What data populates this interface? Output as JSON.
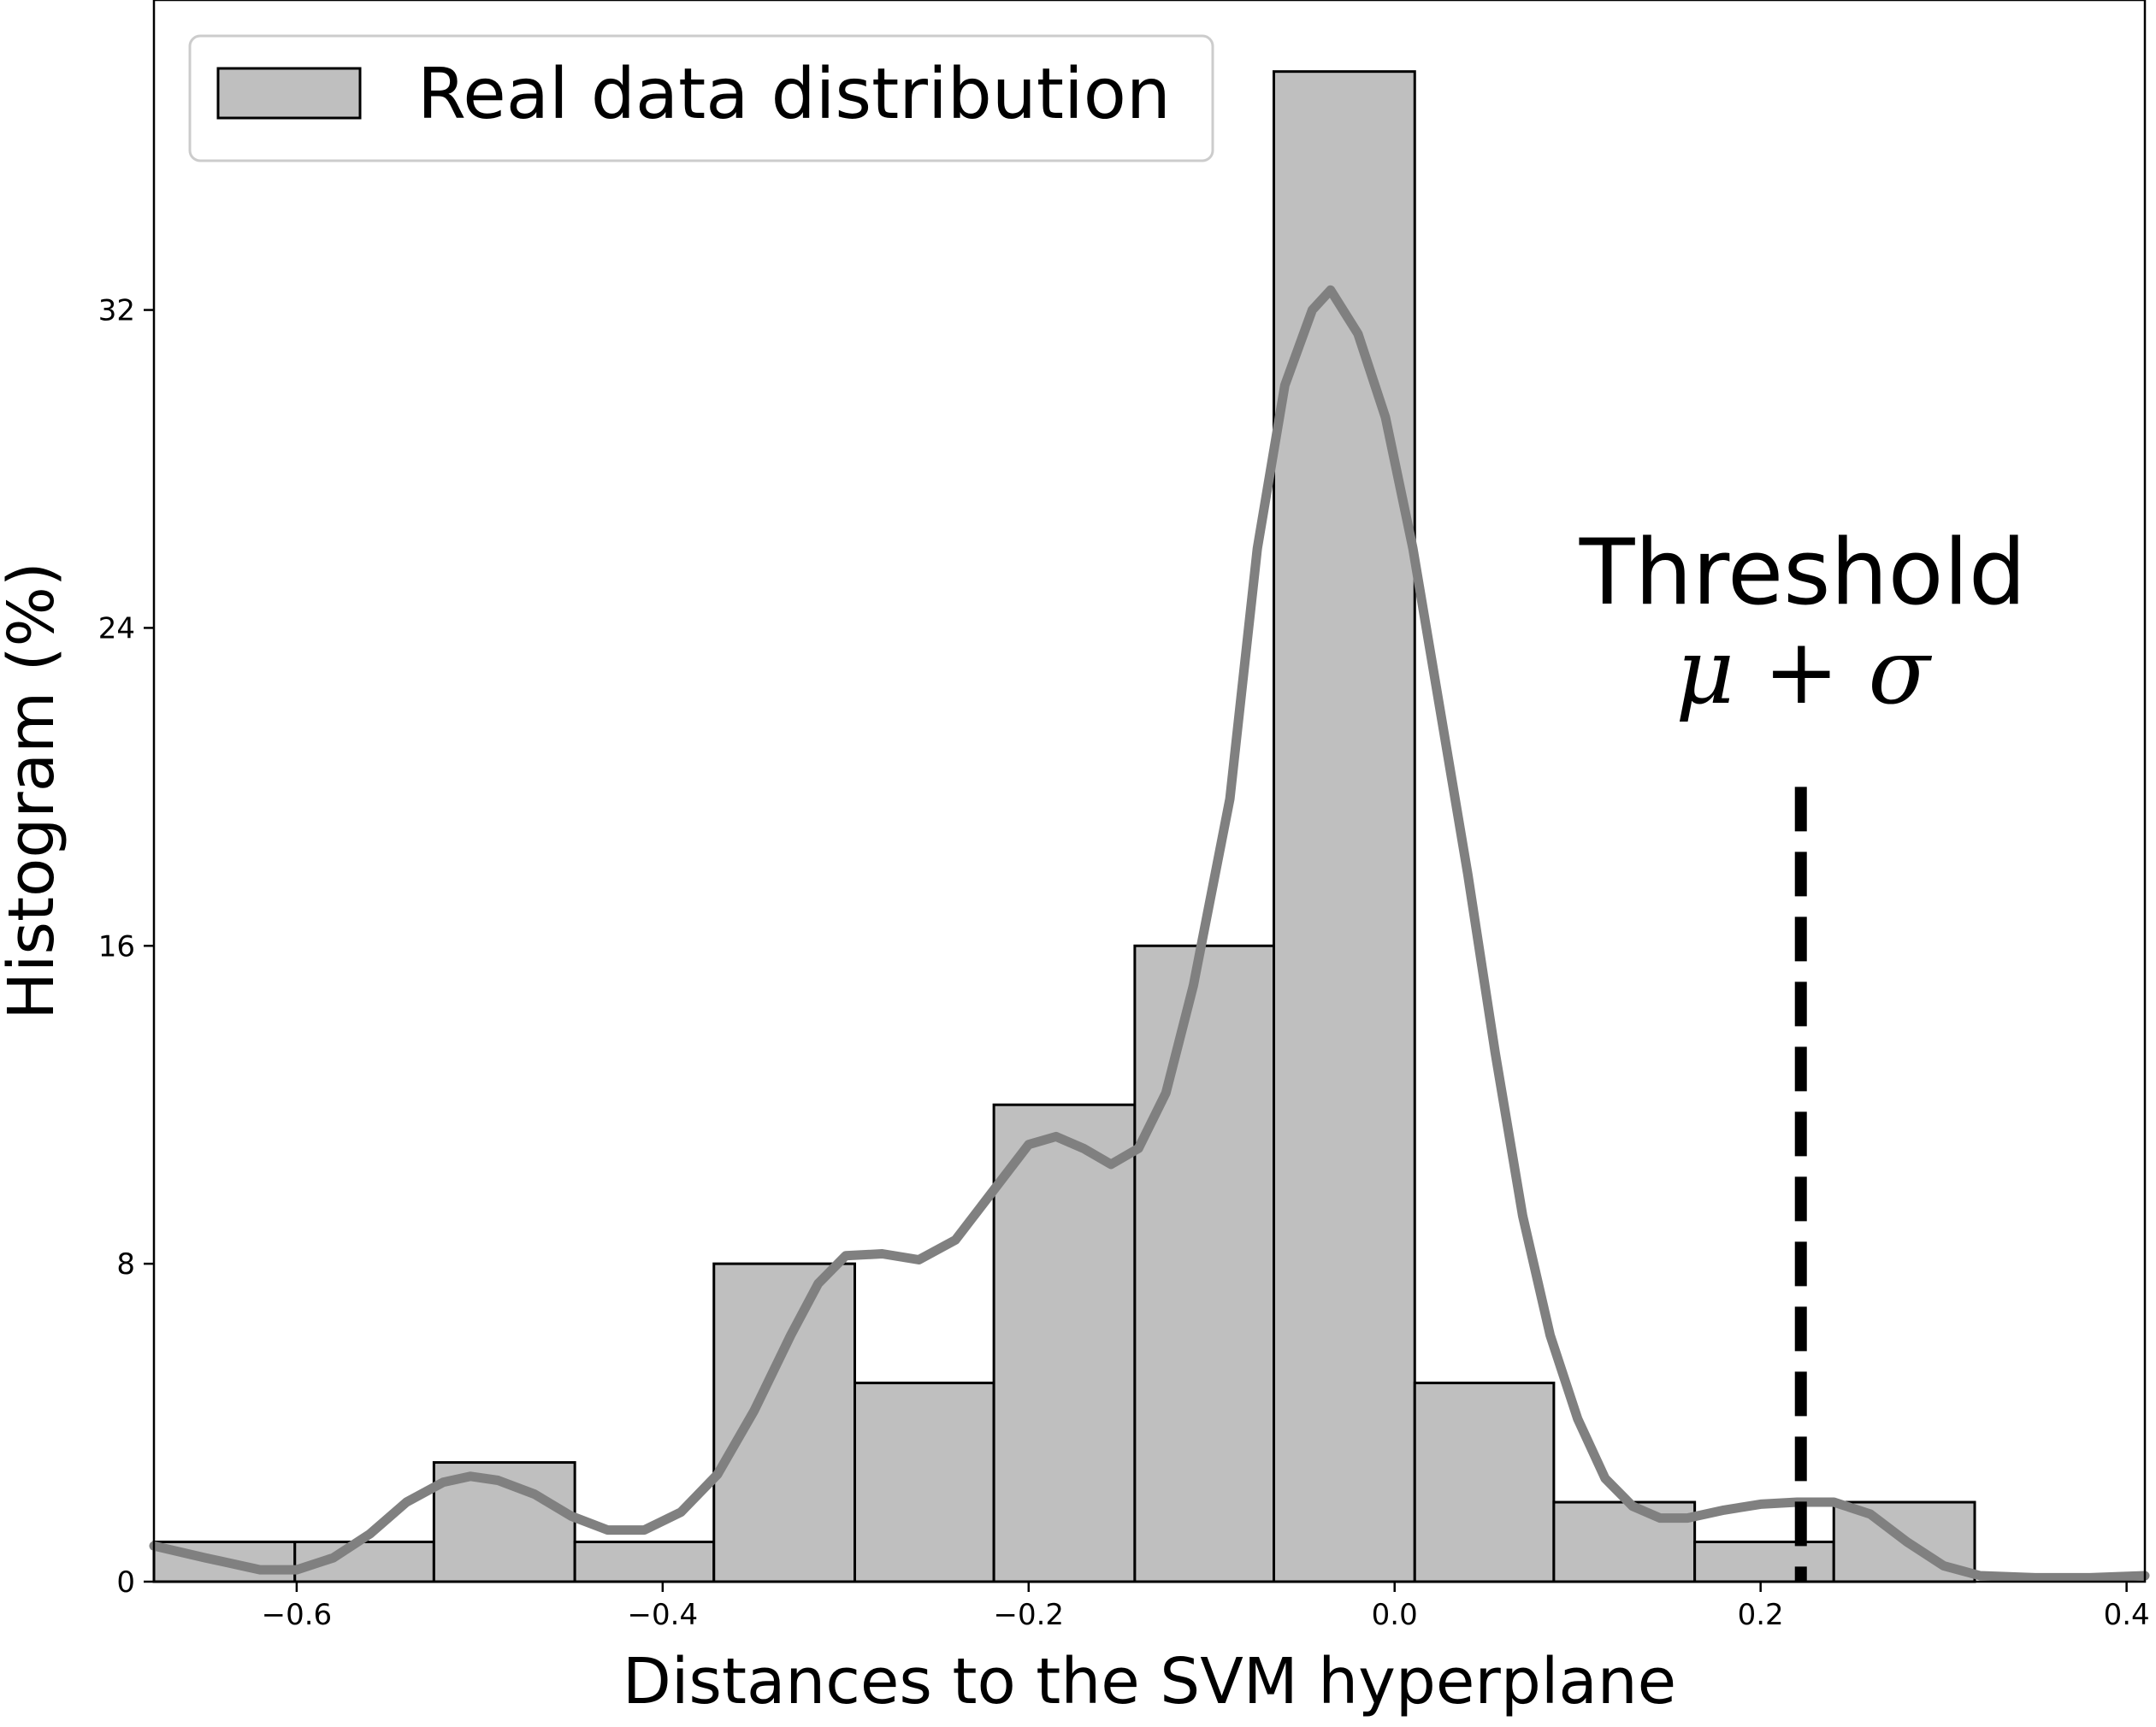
{
  "chart_data": {
    "type": "bar",
    "xlabel": "Distances to the SVM hyperplane",
    "ylabel": "Histogram (%)",
    "xlim": [
      -0.678,
      0.41
    ],
    "ylim": [
      0,
      39.8
    ],
    "x_ticks": [
      -0.6,
      -0.4,
      -0.2,
      0.0,
      0.2,
      0.4
    ],
    "x_tick_labels": [
      "−0.6",
      "−0.4",
      "−0.2",
      "0.0",
      "0.2",
      "0.4"
    ],
    "y_ticks": [
      0,
      8,
      16,
      24,
      32
    ],
    "y_tick_labels": [
      "0",
      "8",
      "16",
      "24",
      "32"
    ],
    "grid": false,
    "legend": {
      "position": "top-left",
      "entries": [
        {
          "label": "Real data distribution",
          "color": "#bfbfbf"
        }
      ]
    },
    "series": [
      {
        "name": "Real data distribution",
        "kind": "histogram",
        "bins": [
          {
            "x0": -0.678,
            "x1": -0.601,
            "value": 1
          },
          {
            "x0": -0.601,
            "x1": -0.525,
            "value": 1
          },
          {
            "x0": -0.525,
            "x1": -0.448,
            "value": 3
          },
          {
            "x0": -0.448,
            "x1": -0.372,
            "value": 1
          },
          {
            "x0": -0.372,
            "x1": -0.295,
            "value": 8
          },
          {
            "x0": -0.295,
            "x1": -0.219,
            "value": 5
          },
          {
            "x0": -0.219,
            "x1": -0.142,
            "value": 12
          },
          {
            "x0": -0.142,
            "x1": -0.066,
            "value": 16
          },
          {
            "x0": -0.066,
            "x1": 0.011,
            "value": 38
          },
          {
            "x0": 0.011,
            "x1": 0.087,
            "value": 5
          },
          {
            "x0": 0.087,
            "x1": 0.164,
            "value": 2
          },
          {
            "x0": 0.164,
            "x1": 0.24,
            "value": 1
          },
          {
            "x0": 0.24,
            "x1": 0.317,
            "value": 2
          }
        ],
        "fill": "#bfbfbf",
        "edge": "#000000"
      },
      {
        "kind": "density-curve",
        "color": "#808080",
        "points": [
          [
            -0.678,
            0.9
          ],
          [
            -0.65,
            0.6
          ],
          [
            -0.62,
            0.3
          ],
          [
            -0.6,
            0.3
          ],
          [
            -0.58,
            0.6
          ],
          [
            -0.56,
            1.2
          ],
          [
            -0.54,
            2.0
          ],
          [
            -0.52,
            2.5
          ],
          [
            -0.505,
            2.65
          ],
          [
            -0.49,
            2.55
          ],
          [
            -0.47,
            2.2
          ],
          [
            -0.45,
            1.65
          ],
          [
            -0.43,
            1.3
          ],
          [
            -0.41,
            1.3
          ],
          [
            -0.39,
            1.75
          ],
          [
            -0.37,
            2.7
          ],
          [
            -0.35,
            4.3
          ],
          [
            -0.33,
            6.2
          ],
          [
            -0.315,
            7.5
          ],
          [
            -0.3,
            8.2
          ],
          [
            -0.28,
            8.25
          ],
          [
            -0.26,
            8.1
          ],
          [
            -0.24,
            8.6
          ],
          [
            -0.22,
            9.8
          ],
          [
            -0.2,
            11.0
          ],
          [
            -0.185,
            11.2
          ],
          [
            -0.17,
            10.9
          ],
          [
            -0.155,
            10.5
          ],
          [
            -0.14,
            10.9
          ],
          [
            -0.125,
            12.3
          ],
          [
            -0.11,
            15.0
          ],
          [
            -0.09,
            19.7
          ],
          [
            -0.075,
            26.0
          ],
          [
            -0.06,
            30.1
          ],
          [
            -0.045,
            32.0
          ],
          [
            -0.035,
            32.5
          ],
          [
            -0.02,
            31.4
          ],
          [
            -0.005,
            29.3
          ],
          [
            0.01,
            26.0
          ],
          [
            0.025,
            21.9
          ],
          [
            0.04,
            17.8
          ],
          [
            0.055,
            13.3
          ],
          [
            0.07,
            9.2
          ],
          [
            0.085,
            6.2
          ],
          [
            0.1,
            4.1
          ],
          [
            0.115,
            2.6
          ],
          [
            0.13,
            1.9
          ],
          [
            0.145,
            1.6
          ],
          [
            0.16,
            1.6
          ],
          [
            0.18,
            1.8
          ],
          [
            0.2,
            1.95
          ],
          [
            0.22,
            2.0
          ],
          [
            0.24,
            2.0
          ],
          [
            0.26,
            1.7
          ],
          [
            0.28,
            1.0
          ],
          [
            0.3,
            0.4
          ],
          [
            0.32,
            0.15
          ],
          [
            0.35,
            0.1
          ],
          [
            0.38,
            0.1
          ],
          [
            0.41,
            0.15
          ]
        ]
      }
    ],
    "threshold": {
      "x": 0.222,
      "y_top": 20,
      "label_line1": "Threshold",
      "label_math": "μ + σ",
      "style": "dashed",
      "color": "#000000"
    }
  }
}
